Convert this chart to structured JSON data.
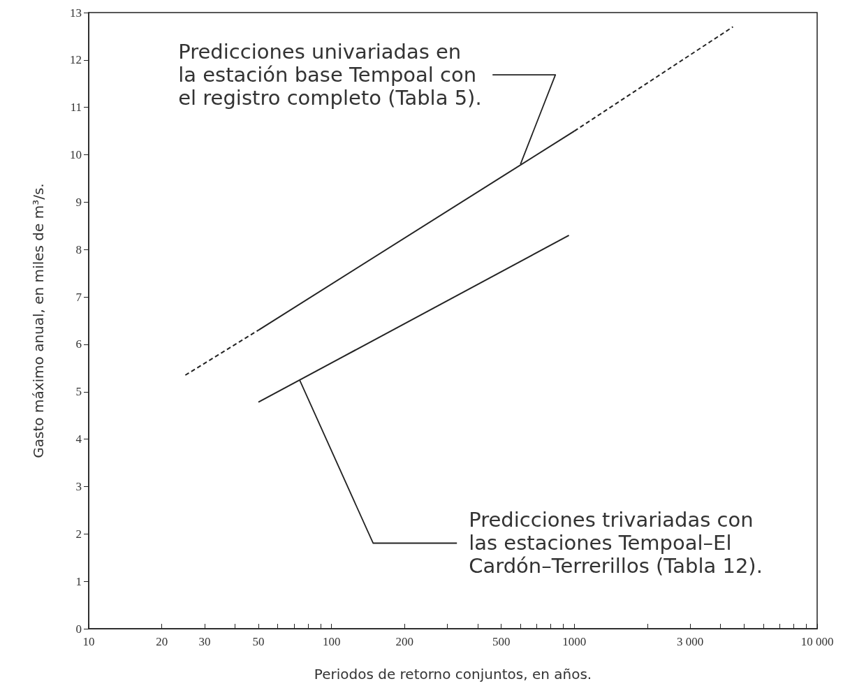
{
  "chart_data": {
    "type": "line",
    "xlabel": "Periodos de retorno conjuntos, en años.",
    "ylabel": "Gasto máximo anual, en miles de m³/s.",
    "log": "x",
    "xlim": [
      10,
      10000
    ],
    "ylim": [
      0,
      13
    ],
    "xticks": [
      10,
      20,
      30,
      {
        "value": 40,
        "label": null
      },
      50,
      {
        "value": 60,
        "label": null
      },
      {
        "value": 70,
        "label": null
      },
      {
        "value": 80,
        "label": null
      },
      {
        "value": 90,
        "label": null
      },
      100,
      200,
      {
        "value": 300,
        "label": null
      },
      {
        "value": 400,
        "label": null
      },
      500,
      {
        "value": 600,
        "label": null
      },
      {
        "value": 700,
        "label": null
      },
      {
        "value": 800,
        "label": null
      },
      {
        "value": 900,
        "label": null
      },
      1000,
      {
        "value": 2000,
        "label": null
      },
      {
        "value": 3000,
        "label": "3 000"
      },
      {
        "value": 4000,
        "label": null
      },
      {
        "value": 5000,
        "label": null
      },
      {
        "value": 6000,
        "label": null
      },
      {
        "value": 7000,
        "label": null
      },
      {
        "value": 8000,
        "label": null
      },
      {
        "value": 9000,
        "label": null
      },
      {
        "value": 10000,
        "label": "10 000"
      }
    ],
    "yticks": [
      0,
      1,
      2,
      3,
      4,
      5,
      6,
      7,
      8,
      9,
      10,
      11,
      12,
      13
    ],
    "marker": "none",
    "grid": false,
    "series": [
      {
        "color": "#222222",
        "line_style": "dashed",
        "x": [
          25,
          50
        ],
        "values": [
          5.35,
          6.3
        ]
      },
      {
        "color": "#222222",
        "line_style": "dashed",
        "x": [
          1000,
          4500
        ],
        "values": [
          10.5,
          12.7
        ]
      },
      {
        "color": "#222222",
        "line_style": "solid",
        "x": [
          50,
          1000
        ],
        "values": [
          6.3,
          10.5
        ]
      },
      {
        "color": "#222222",
        "line_style": "solid",
        "x": [
          50,
          950
        ],
        "values": [
          4.78,
          8.3
        ]
      }
    ],
    "annotations": [
      {
        "text": "Predicciones univariadas en\nla estación base Tempoal con\nel registro completo (Tabla 5).",
        "x": 600,
        "y": 9.8
      },
      {
        "text": "Predicciones trivariadas con\nlas estaciones Tempoal–El\nCardón–Terrerillos (Tabla 12).",
        "x": 74,
        "y": 5.24
      }
    ]
  }
}
